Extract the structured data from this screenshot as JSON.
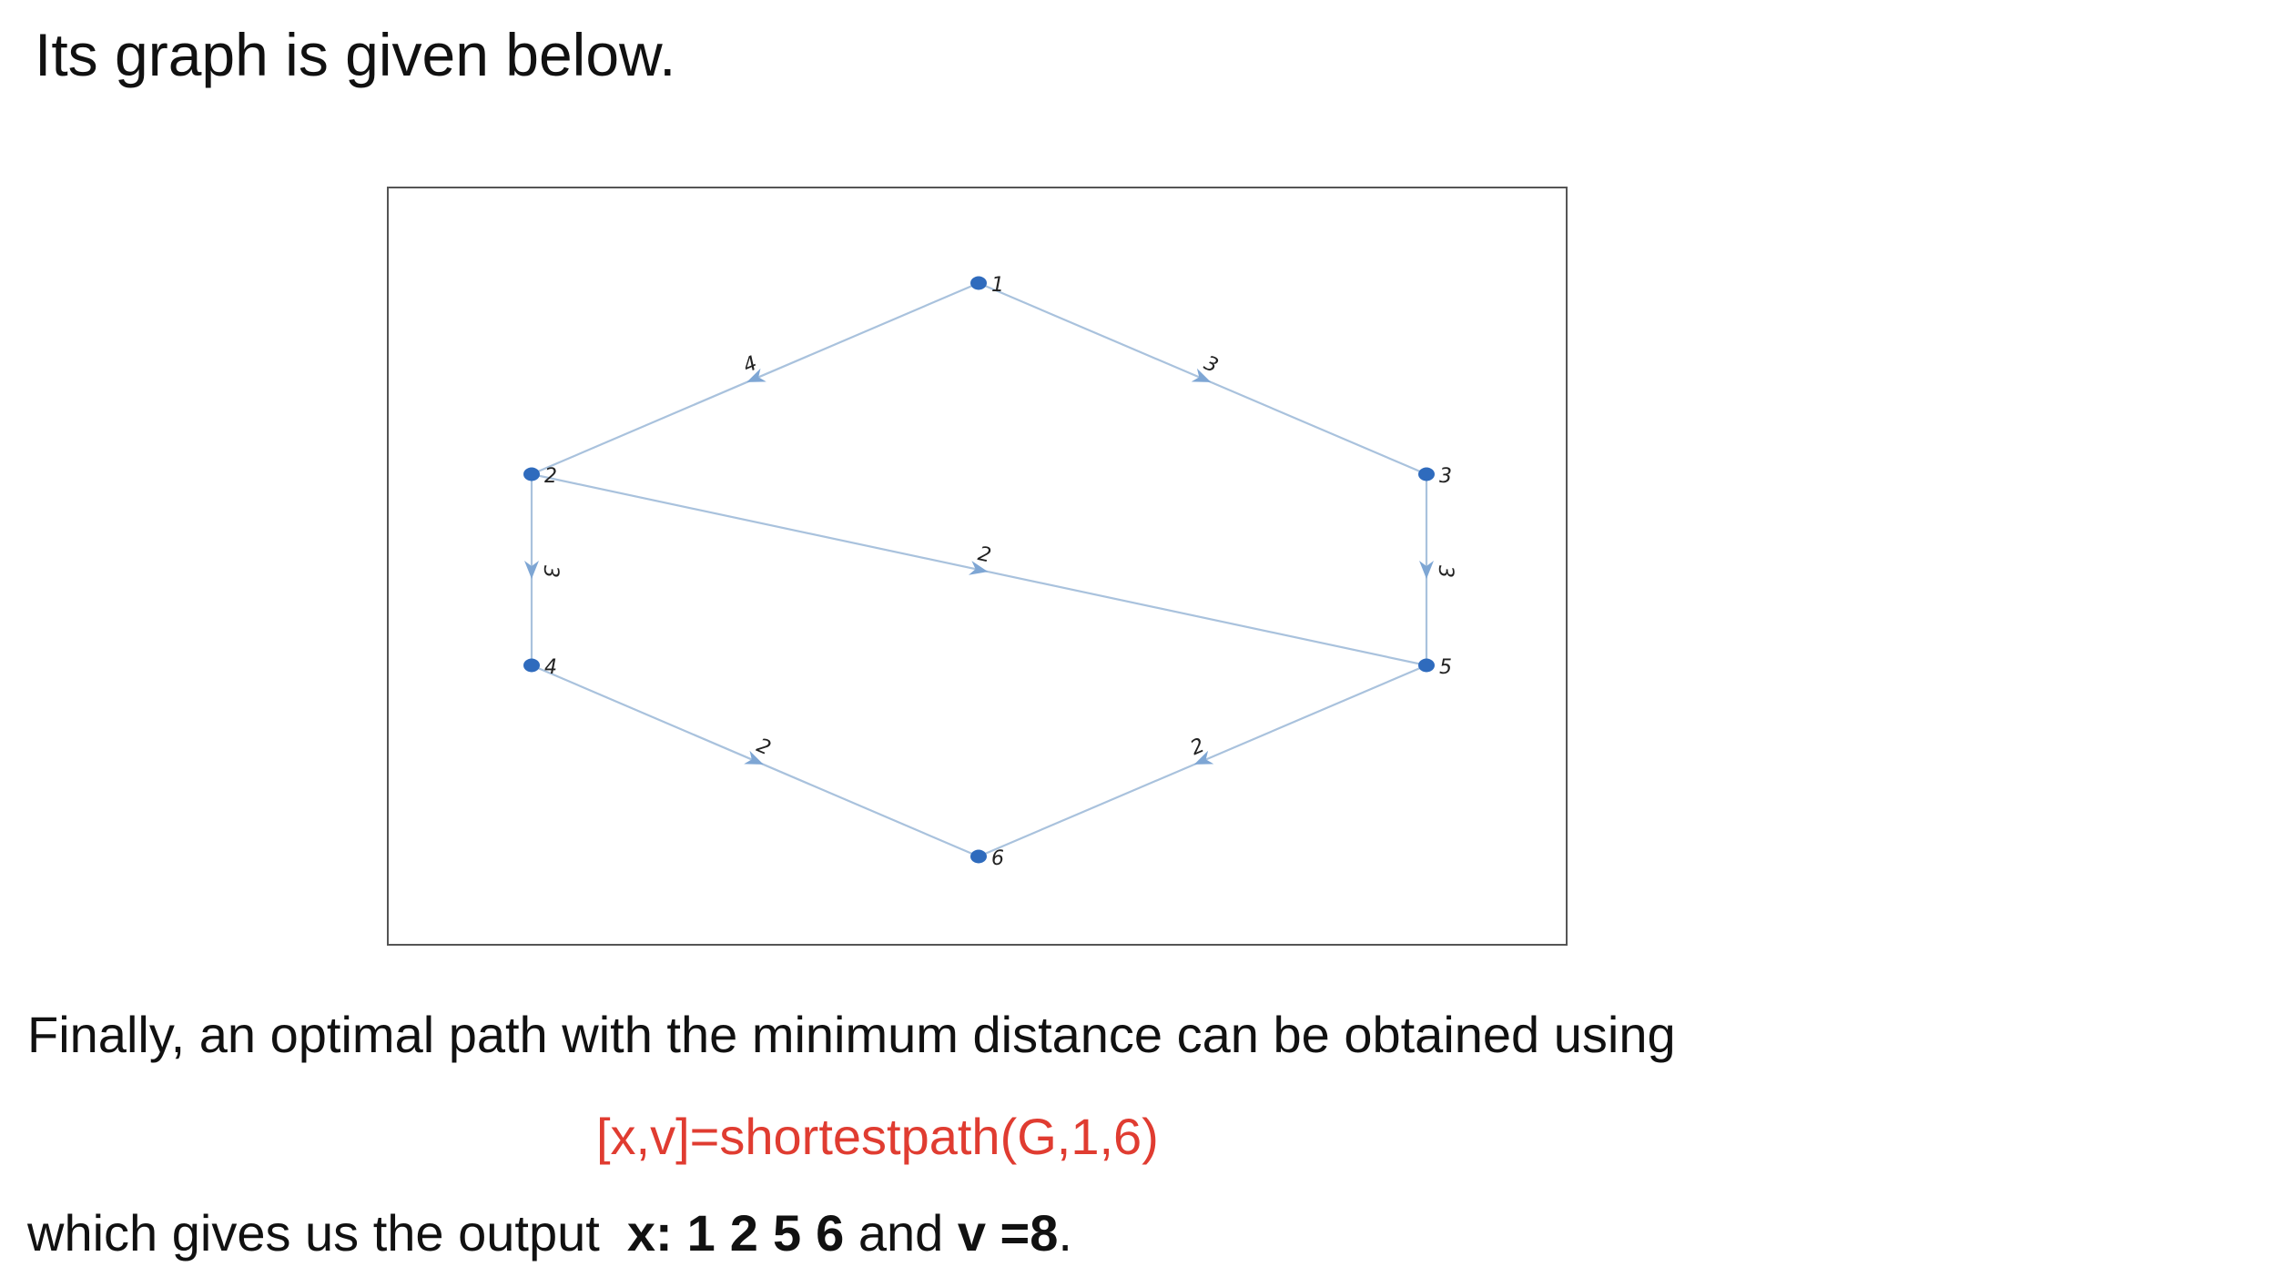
{
  "heading": "Its graph is given below.",
  "graph": {
    "nodes": [
      "1",
      "2",
      "3",
      "4",
      "5",
      "6"
    ],
    "edges": [
      {
        "from": "1",
        "to": "2",
        "weight": "4"
      },
      {
        "from": "1",
        "to": "3",
        "weight": "3"
      },
      {
        "from": "2",
        "to": "4",
        "weight": "3"
      },
      {
        "from": "2",
        "to": "5",
        "weight": "2"
      },
      {
        "from": "3",
        "to": "5",
        "weight": "3"
      },
      {
        "from": "4",
        "to": "6",
        "weight": "2"
      },
      {
        "from": "5",
        "to": "6",
        "weight": "2"
      }
    ],
    "colors": {
      "edge": "#a9c2dd",
      "arrow": "#7ea6d4",
      "node": "#2f6bbd"
    }
  },
  "paragraph": "Finally, an optimal path with the minimum distance can be obtained using",
  "command": "[x,v]=shortestpath(G,1,6)",
  "command_color": "#e03c31",
  "output": {
    "prefix": "which gives us the output",
    "x_label": "x:",
    "path": [
      "1",
      "2",
      "5",
      "6"
    ],
    "and": "and",
    "v_label": "v =8",
    "end": "."
  }
}
